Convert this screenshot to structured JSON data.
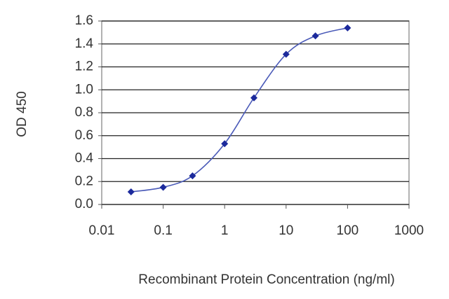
{
  "chart_data": {
    "type": "scatter",
    "x_label": "Recombinant Protein Concentration (ng/ml)",
    "y_label": "OD 450",
    "x": [
      0.03,
      0.1,
      0.3,
      1,
      3,
      10,
      30,
      100
    ],
    "series": [
      {
        "color": "#1c2a9c",
        "values": [
          0.11,
          0.15,
          0.25,
          0.53,
          0.93,
          1.31,
          1.47,
          1.54
        ]
      }
    ],
    "xscale": "log",
    "xlim": [
      0.01,
      1000
    ],
    "xticks": [
      0.01,
      0.1,
      1,
      10,
      100,
      1000
    ],
    "ylim": [
      0,
      1.6
    ],
    "yticks": [
      {
        "value": 0,
        "label": "0.0"
      },
      0.2,
      0.4,
      0.6,
      0.8,
      {
        "value": 1,
        "label": "1.0"
      },
      1.2,
      1.4,
      1.6
    ],
    "grid": true,
    "line": true
  }
}
